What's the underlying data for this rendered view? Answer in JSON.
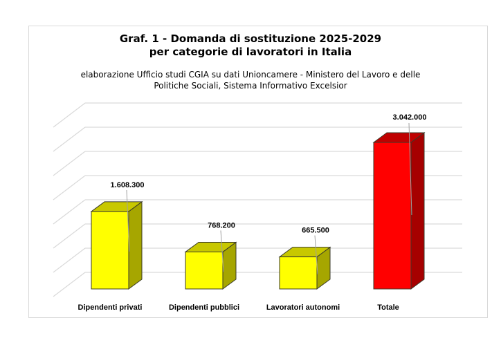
{
  "chart_data": {
    "type": "bar",
    "style": "3d-column",
    "title": "Graf. 1 - Domanda di sostituzione 2025-2029 per categorie di lavoratori in Italia",
    "title_lines": [
      "Graf. 1 - Domanda di sostituzione 2025-2029",
      "per categorie di lavoratori in Italia"
    ],
    "subtitle_lines": [
      "elaborazione Ufficio studi CGIA su dati Unioncamere - Ministero del Lavoro e delle",
      "Politiche Sociali, Sistema Informativo Excelsior"
    ],
    "categories": [
      "Dipendenti privati",
      "Dipendenti pubblici",
      "Lavoratori autonomi",
      "Totale"
    ],
    "values": [
      1608300,
      768200,
      665500,
      3042000
    ],
    "data_labels": [
      "1.608.300",
      "768.200",
      "665.500",
      "3.042.000"
    ],
    "colors": [
      "#ffff00",
      "#ffff00",
      "#ffff00",
      "#ff0000"
    ],
    "side_colors": [
      "#a6a600",
      "#a6a600",
      "#a6a600",
      "#a60000"
    ],
    "top_colors": [
      "#c8c800",
      "#c8c800",
      "#c8c800",
      "#c00000"
    ],
    "xlabel": "",
    "ylabel": "",
    "ylim": [
      0,
      3500000
    ],
    "ytick_step": 500000,
    "yticks_visible": false,
    "grid": true,
    "legend": "none"
  }
}
